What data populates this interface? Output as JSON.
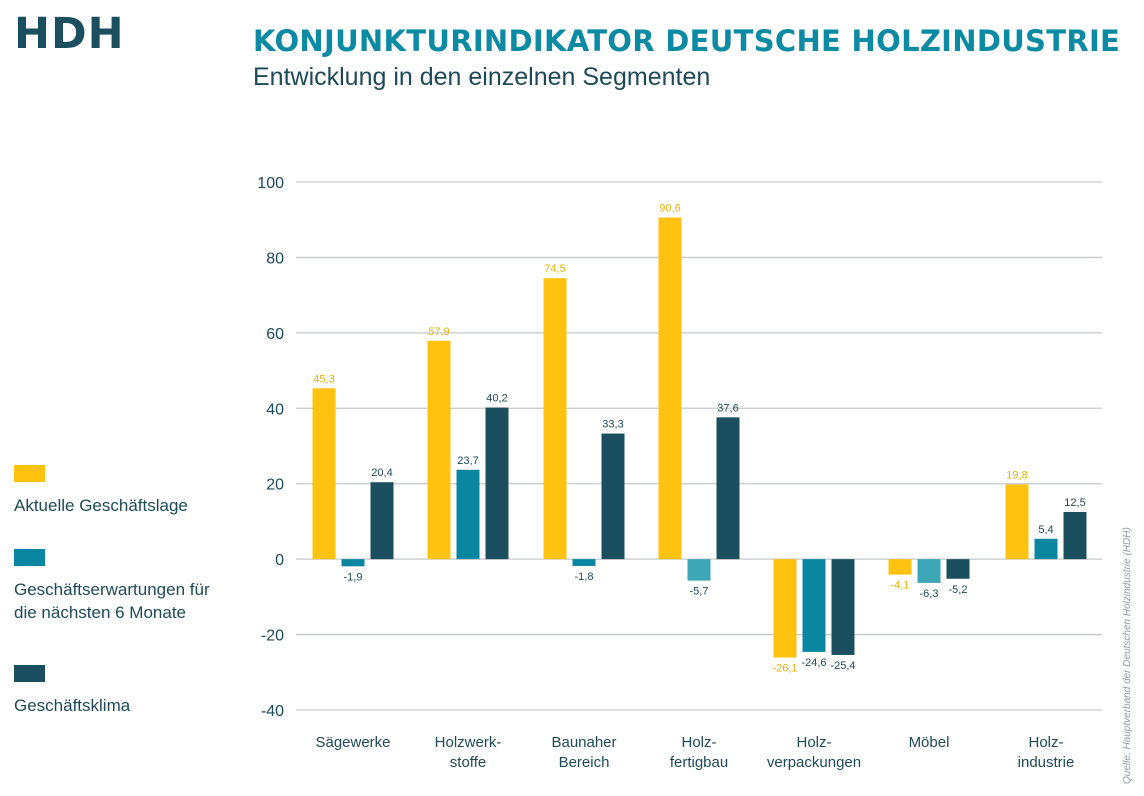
{
  "header": {
    "logo_text": "HDH",
    "title": "KONJUNKTURINDIKATOR DEUTSCHE HOLZINDUSTRIE",
    "subtitle": "Entwicklung in den einzelnen Segmenten"
  },
  "source_note": "Quelle: Hauptverband der Deutschen Holzindustrie (HDH)",
  "colors": {
    "aktuelle": "#fec20f",
    "erwartungen": "#0a86a0",
    "erwartungen_negative": "#3ea7b7",
    "klima": "#1b4f5f",
    "grid": "#c6cacc",
    "text": "#1e4a58"
  },
  "legend": [
    {
      "label": "Aktuelle Geschäftslage",
      "color": "#fec20f"
    },
    {
      "label": "Geschäftserwartungen für die nächsten 6 Monate",
      "color": "#0a86a0"
    },
    {
      "label": "Geschäftsklima",
      "color": "#1b4f5f"
    }
  ],
  "chart_data": {
    "type": "bar",
    "title": "KONJUNKTURINDIKATOR DEUTSCHE HOLZINDUSTRIE",
    "subtitle": "Entwicklung in den einzelnen Segmenten",
    "categories": [
      [
        "Sägewerke"
      ],
      [
        "Holzwerk-",
        "stoffe"
      ],
      [
        "Baunaher",
        "Bereich"
      ],
      [
        "Holz-",
        "fertigbau"
      ],
      [
        "Holz-",
        "verpackungen"
      ],
      [
        "Möbel"
      ],
      [
        "Holz-",
        "industrie"
      ]
    ],
    "series": [
      {
        "name": "Aktuelle Geschäftslage",
        "values": [
          45.3,
          57.9,
          74.5,
          90.6,
          -26.1,
          -4.1,
          19.8
        ],
        "labels": [
          "45,3",
          "57,9",
          "74,5",
          "90,6",
          "-26,1",
          "-4,1",
          "19,8"
        ]
      },
      {
        "name": "Geschäftserwartungen für die nächsten 6 Monate",
        "values": [
          -1.9,
          23.7,
          -1.8,
          -5.7,
          -24.6,
          -6.3,
          5.4
        ],
        "labels": [
          "-1,9",
          "23,7",
          "-1,8",
          "-5,7",
          "-24,6",
          "-6,3",
          "5,4"
        ]
      },
      {
        "name": "Geschäftsklima",
        "values": [
          20.4,
          40.2,
          33.3,
          37.6,
          -25.4,
          -5.2,
          12.5
        ],
        "labels": [
          "20,4",
          "40,2",
          "33,3",
          "37,6",
          "-25,4",
          "-5,2",
          "12,5"
        ]
      }
    ],
    "yticks": [
      100,
      80,
      60,
      40,
      20,
      0,
      -20,
      -40
    ],
    "ytick_labels": [
      "100",
      "80",
      "60",
      "40",
      "20",
      "0",
      "-20",
      "-40"
    ],
    "ylim": [
      -40,
      100
    ],
    "grid": true,
    "legend_position": "left"
  }
}
